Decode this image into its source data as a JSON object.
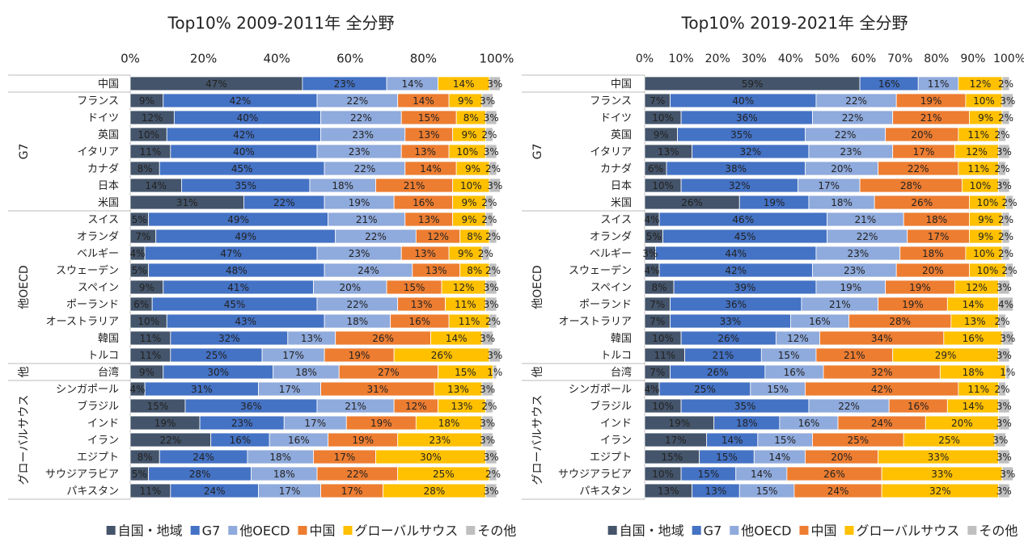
{
  "chart_data": [
    {
      "type": "stacked_bar_horizontal",
      "title": "Top10% 2009-2011年 全分野",
      "categories": [
        "中国",
        "フランス",
        "ドイツ",
        "英国",
        "イタリア",
        "カナダ",
        "日本",
        "米国",
        "スイス",
        "オランダ",
        "ベルギー",
        "スウェーデン",
        "スペイン",
        "ポーランド",
        "オーストラリア",
        "韓国",
        "トルコ",
        "台湾",
        "シンガポール",
        "ブラジル",
        "インド",
        "イラン",
        "エジプト",
        "サウジアラビア",
        "パキスタン"
      ],
      "groups": [
        null,
        "G7",
        "G7",
        "G7",
        "G7",
        "G7",
        "G7",
        "G7",
        "他OECD",
        "他OECD",
        "他OECD",
        "他OECD",
        "他OECD",
        "他OECD",
        "他OECD",
        "他OECD",
        "他OECD",
        "他",
        "グローバルサウス",
        "グローバルサウス",
        "グローバルサウス",
        "グローバルサウス",
        "グローバルサウス",
        "グローバルサウス",
        "グローバルサウス"
      ],
      "xlim": [
        0,
        100
      ],
      "xticks": [
        {
          "value": 0,
          "label": "0%"
        },
        {
          "value": 20,
          "label": "20%"
        },
        {
          "value": 40,
          "label": "40%"
        },
        {
          "value": 60,
          "label": "60%"
        },
        {
          "value": 80,
          "label": "80%"
        },
        {
          "value": 100,
          "label": "100%"
        }
      ],
      "series": [
        {
          "name": "自国・地域",
          "color": "#44546a",
          "values": [
            47,
            9,
            12,
            10,
            11,
            8,
            14,
            31,
            5,
            7,
            4,
            5,
            9,
            6,
            10,
            11,
            11,
            9,
            4,
            15,
            19,
            22,
            8,
            5,
            11
          ],
          "value_labels": [
            "47%",
            "9%",
            "12%",
            "10%",
            "11%",
            "8%",
            "14%",
            "31%",
            "5%",
            "7%",
            "4%",
            "5%",
            "9%",
            "6%",
            "10%",
            "11%",
            "11%",
            "9%",
            "4%",
            "15%",
            "19%",
            "22%",
            "8%",
            "5%",
            "11%"
          ]
        },
        {
          "name": "G7",
          "color": "#4472c4",
          "values": [
            23,
            42,
            40,
            42,
            40,
            45,
            35,
            22,
            49,
            49,
            47,
            48,
            41,
            45,
            43,
            32,
            25,
            30,
            31,
            36,
            23,
            16,
            24,
            28,
            24
          ],
          "value_labels": [
            "23%",
            "42%",
            "40%",
            "42%",
            "40%",
            "45%",
            "35%",
            "22%",
            "49%",
            "49%",
            "47%",
            "48%",
            "41%",
            "45%",
            "43%",
            "32%",
            "25%",
            "30%",
            "31%",
            "36%",
            "23%",
            "16%",
            "24%",
            "28%",
            "24%"
          ]
        },
        {
          "name": "他OECD",
          "color": "#8faadc",
          "values": [
            14,
            22,
            22,
            23,
            23,
            22,
            18,
            19,
            21,
            22,
            23,
            24,
            20,
            22,
            18,
            13,
            17,
            18,
            17,
            21,
            17,
            16,
            18,
            18,
            17
          ],
          "value_labels": [
            "14%",
            "22%",
            "22%",
            "23%",
            "23%",
            "22%",
            "18%",
            "19%",
            "21%",
            "22%",
            "23%",
            "24%",
            "20%",
            "22%",
            "18%",
            "13%",
            "17%",
            "18%",
            "17%",
            "21%",
            "17%",
            "16%",
            "18%",
            "18%",
            "17%"
          ]
        },
        {
          "name": "中国",
          "color": "#ed7d31",
          "values": [
            null,
            14,
            15,
            13,
            13,
            14,
            21,
            16,
            13,
            12,
            13,
            13,
            15,
            13,
            16,
            26,
            19,
            27,
            31,
            12,
            19,
            19,
            17,
            22,
            17
          ],
          "value_labels": [
            null,
            "14%",
            "15%",
            "13%",
            "13%",
            "14%",
            "21%",
            "16%",
            "13%",
            "12%",
            "13%",
            "13%",
            "15%",
            "13%",
            "16%",
            "26%",
            "19%",
            "27%",
            "31%",
            "12%",
            "19%",
            "19%",
            "17%",
            "22%",
            "17%"
          ]
        },
        {
          "name": "グローバルサウス",
          "color": "#ffc000",
          "values": [
            14,
            9,
            8,
            9,
            10,
            9,
            10,
            9,
            9,
            8,
            9,
            8,
            12,
            11,
            11,
            14,
            26,
            15,
            13,
            13,
            18,
            23,
            30,
            25,
            28
          ],
          "value_labels": [
            "14%",
            "9%",
            "8%",
            "9%",
            "10%",
            "9%",
            "10%",
            "9%",
            "9%",
            "8%",
            "9%",
            "8%",
            "12%",
            "11%",
            "11%",
            "14%",
            "26%",
            "15%",
            "13%",
            "13%",
            "18%",
            "23%",
            "30%",
            "25%",
            "28%"
          ]
        },
        {
          "name": "その他",
          "color": "#bfbfbf",
          "values": [
            3,
            3,
            3,
            2,
            3,
            2,
            3,
            2,
            2,
            2,
            2,
            2,
            3,
            3,
            2,
            3,
            3,
            1,
            3,
            2,
            3,
            3,
            3,
            2,
            3
          ],
          "value_labels": [
            "3%",
            "3%",
            "3%",
            "2%",
            "3%",
            "2%",
            "3%",
            "2%",
            "2%",
            "2%",
            "2%",
            "2%",
            "3%",
            "3%",
            "2%",
            "3%",
            "3%",
            "1%",
            "3%",
            "2%",
            "3%",
            "3%",
            "3%",
            "2%",
            "3%"
          ]
        }
      ]
    },
    {
      "type": "stacked_bar_horizontal",
      "title": "Top10% 2019-2021年 全分野",
      "categories": [
        "中国",
        "フランス",
        "ドイツ",
        "英国",
        "イタリア",
        "カナダ",
        "日本",
        "米国",
        "スイス",
        "オランダ",
        "ベルギー",
        "スウェーデン",
        "スペイン",
        "ポーランド",
        "オーストラリア",
        "韓国",
        "トルコ",
        "台湾",
        "シンガポール",
        "ブラジル",
        "インド",
        "イラン",
        "エジプト",
        "サウジアラビア",
        "パキスタン"
      ],
      "groups": [
        null,
        "G7",
        "G7",
        "G7",
        "G7",
        "G7",
        "G7",
        "G7",
        "他OECD",
        "他OECD",
        "他OECD",
        "他OECD",
        "他OECD",
        "他OECD",
        "他OECD",
        "他OECD",
        "他OECD",
        "他",
        "グローバルサウス",
        "グローバルサウス",
        "グローバルサウス",
        "グローバルサウス",
        "グローバルサウス",
        "グローバルサウス",
        "グローバルサウス"
      ],
      "xlim": [
        0,
        100
      ],
      "xticks": [
        {
          "value": 0,
          "label": "0%"
        },
        {
          "value": 10,
          "label": "10%"
        },
        {
          "value": 20,
          "label": "20%"
        },
        {
          "value": 30,
          "label": "30%"
        },
        {
          "value": 40,
          "label": "40%"
        },
        {
          "value": 50,
          "label": "50%"
        },
        {
          "value": 60,
          "label": "60%"
        },
        {
          "value": 70,
          "label": "70%"
        },
        {
          "value": 80,
          "label": "80%"
        },
        {
          "value": 90,
          "label": "90%"
        },
        {
          "value": 100,
          "label": "100%"
        }
      ],
      "series": [
        {
          "name": "自国・地域",
          "color": "#44546a",
          "values": [
            59,
            7,
            10,
            9,
            13,
            6,
            10,
            26,
            4,
            5,
            3,
            4,
            8,
            7,
            7,
            10,
            11,
            7,
            4,
            10,
            19,
            17,
            15,
            10,
            13
          ],
          "value_labels": [
            "59%",
            "7%",
            "10%",
            "9%",
            "13%",
            "6%",
            "10%",
            "26%",
            "4%",
            "5%",
            "3%",
            "4%",
            "8%",
            "7%",
            "7%",
            "10%",
            "11%",
            "7%",
            "4%",
            "10%",
            "19%",
            "17%",
            "15%",
            "10%",
            "13%"
          ]
        },
        {
          "name": "G7",
          "color": "#4472c4",
          "values": [
            16,
            40,
            36,
            35,
            32,
            38,
            32,
            19,
            46,
            45,
            44,
            42,
            39,
            36,
            33,
            26,
            21,
            26,
            25,
            35,
            18,
            14,
            15,
            15,
            13
          ],
          "value_labels": [
            "16%",
            "40%",
            "36%",
            "35%",
            "32%",
            "38%",
            "32%",
            "19%",
            "46%",
            "45%",
            "44%",
            "42%",
            "39%",
            "36%",
            "33%",
            "26%",
            "21%",
            "26%",
            "25%",
            "35%",
            "18%",
            "14%",
            "15%",
            "15%",
            "13%"
          ]
        },
        {
          "name": "他OECD",
          "color": "#8faadc",
          "values": [
            11,
            22,
            22,
            22,
            23,
            20,
            17,
            18,
            21,
            22,
            23,
            23,
            19,
            21,
            16,
            12,
            15,
            16,
            15,
            22,
            16,
            15,
            14,
            14,
            15
          ],
          "value_labels": [
            "11%",
            "22%",
            "22%",
            "22%",
            "23%",
            "20%",
            "17%",
            "18%",
            "21%",
            "22%",
            "23%",
            "23%",
            "19%",
            "21%",
            "16%",
            "12%",
            "15%",
            "16%",
            "15%",
            "22%",
            "16%",
            "15%",
            "14%",
            "14%",
            "15%"
          ]
        },
        {
          "name": "中国",
          "color": "#ed7d31",
          "values": [
            null,
            19,
            21,
            20,
            17,
            22,
            28,
            26,
            18,
            17,
            18,
            20,
            19,
            19,
            28,
            34,
            21,
            32,
            42,
            16,
            24,
            25,
            20,
            26,
            24
          ],
          "value_labels": [
            null,
            "19%",
            "21%",
            "20%",
            "17%",
            "22%",
            "28%",
            "26%",
            "18%",
            "17%",
            "18%",
            "20%",
            "19%",
            "19%",
            "28%",
            "34%",
            "21%",
            "32%",
            "42%",
            "16%",
            "24%",
            "25%",
            "20%",
            "26%",
            "24%"
          ]
        },
        {
          "name": "グローバルサウス",
          "color": "#ffc000",
          "values": [
            12,
            10,
            9,
            11,
            12,
            11,
            10,
            10,
            9,
            9,
            10,
            10,
            12,
            14,
            13,
            16,
            29,
            18,
            11,
            14,
            20,
            25,
            33,
            33,
            32
          ],
          "value_labels": [
            "12%",
            "10%",
            "9%",
            "11%",
            "12%",
            "11%",
            "10%",
            "10%",
            "9%",
            "9%",
            "10%",
            "10%",
            "12%",
            "14%",
            "13%",
            "16%",
            "29%",
            "18%",
            "11%",
            "14%",
            "20%",
            "25%",
            "33%",
            "33%",
            "32%"
          ]
        },
        {
          "name": "その他",
          "color": "#bfbfbf",
          "values": [
            2,
            3,
            2,
            2,
            3,
            2,
            3,
            2,
            2,
            2,
            2,
            2,
            3,
            4,
            2,
            3,
            3,
            1,
            2,
            3,
            3,
            3,
            3,
            3,
            3
          ],
          "value_labels": [
            "2%",
            "3%",
            "2%",
            "2%",
            "3%",
            "2%",
            "3%",
            "2%",
            "2%",
            "2%",
            "2%",
            "2%",
            "3%",
            "4%",
            "2%",
            "3%",
            "3%",
            "1%",
            "2%",
            "3%",
            "3%",
            "3%",
            "3%",
            "3%",
            "3%"
          ]
        }
      ]
    }
  ]
}
